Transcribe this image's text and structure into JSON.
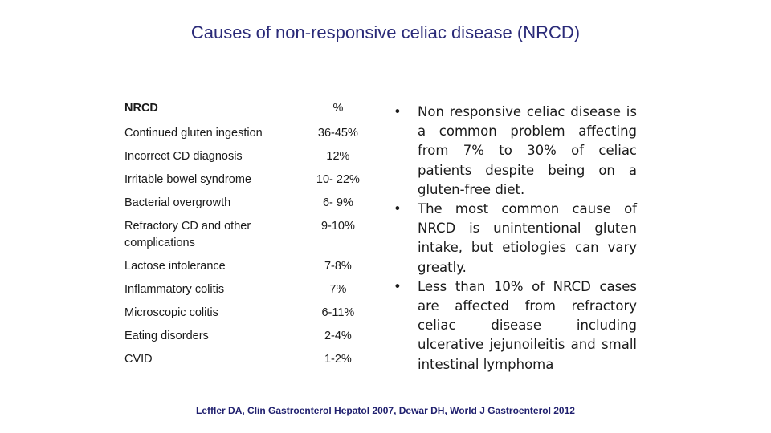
{
  "title": "Causes of non-responsive celiac disease (NRCD)",
  "table": {
    "header": {
      "cause": "NRCD",
      "pct": "%"
    },
    "rows": [
      {
        "cause": "Continued gluten ingestion",
        "pct": "36-45%"
      },
      {
        "cause": "Incorrect CD diagnosis",
        "pct": "12%"
      },
      {
        "cause": "Irritable bowel syndrome",
        "pct": "10- 22%"
      },
      {
        "cause": "Bacterial overgrowth",
        "pct": "6- 9%"
      },
      {
        "cause": "Refractory CD and other complications",
        "pct": "9-10%"
      },
      {
        "cause": "Lactose intolerance",
        "pct": "7-8%"
      },
      {
        "cause": "Inflammatory colitis",
        "pct": "7%"
      },
      {
        "cause": "Microscopic colitis",
        "pct": "6-11%"
      },
      {
        "cause": "Eating disorders",
        "pct": "2-4%"
      },
      {
        "cause": "CVID",
        "pct": "1-2%"
      }
    ]
  },
  "bullets": [
    "Non responsive celiac disease is a common problem affecting from 7% to 30% of celiac patients despite being on a gluten-free diet.",
    "The most common cause of NRCD is unintentional gluten intake, but etiologies can vary greatly.",
    "Less than 10% of NRCD cases are affected from refractory celiac disease including ulcerative jejunoileitis and small intestinal lymphoma"
  ],
  "bullet_symbol": "•",
  "citation": "Leffler DA, Clin Gastroenterol Hepatol 2007, Dewar DH, World J Gastroenterol 2012"
}
